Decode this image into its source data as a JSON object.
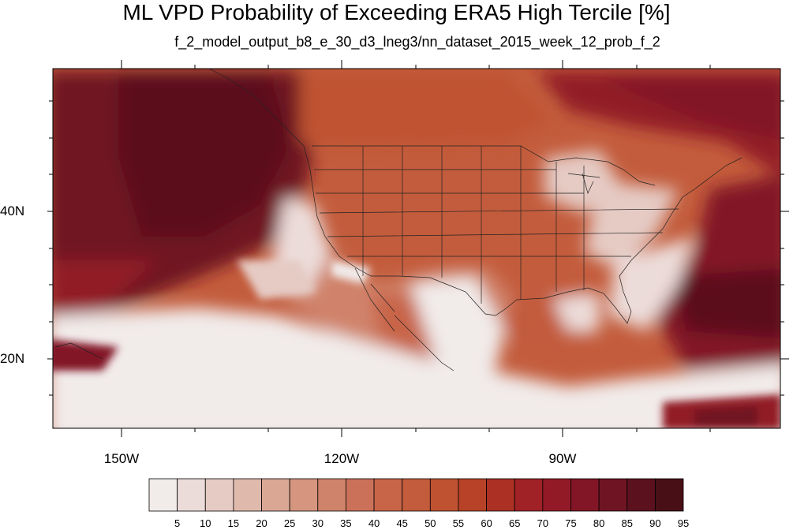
{
  "title": "ML VPD Probability of Exceeding ERA5 High Tercile [%]",
  "subtitle": "f_2_model_output_b8_e_30_d3_lneg3/nn_dataset_2015_week_12_prob_f_2",
  "lon_labels": [
    "150W",
    "120W",
    "90W"
  ],
  "lat_labels": [
    "40N",
    "20N"
  ],
  "colorbar": {
    "labels": [
      "5",
      "10",
      "15",
      "20",
      "25",
      "30",
      "35",
      "40",
      "45",
      "50",
      "55",
      "60",
      "65",
      "70",
      "75",
      "80",
      "85",
      "90",
      "95"
    ],
    "colors": [
      "#f1ebea",
      "#ecdcd9",
      "#e5cbc4",
      "#dfb9ac",
      "#daa795",
      "#d5957f",
      "#d0836b",
      "#cc7159",
      "#c86549",
      "#c35c3c",
      "#bf5231",
      "#b74228",
      "#ac3124",
      "#a12226",
      "#921a27",
      "#821626",
      "#6f1423",
      "#5c111e",
      "#481016"
    ]
  }
}
